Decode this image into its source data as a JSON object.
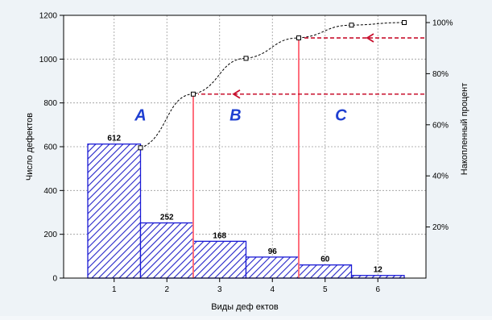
{
  "chart_data": {
    "type": "bar",
    "title": "",
    "xlabel": "Виды деф ектов",
    "ylabel": "Число дефектов",
    "y2label": "Накопленный процент",
    "categories": [
      "1",
      "2",
      "3",
      "4",
      "5",
      "6"
    ],
    "values": [
      612,
      252,
      168,
      96,
      60,
      12
    ],
    "value_labels": [
      "612",
      "252",
      "168",
      "96",
      "60",
      "12"
    ],
    "ylim": [
      0,
      1200
    ],
    "yticks": [
      "0",
      "200",
      "400",
      "600",
      "800",
      "1000",
      "1200"
    ],
    "y2lim": [
      0,
      100
    ],
    "y2ticks": [
      "20%",
      "40%",
      "60%",
      "80%",
      "100%"
    ],
    "cumulative_percent": [
      51,
      72,
      86,
      94,
      99,
      100
    ],
    "zones": [
      "A",
      "B",
      "C"
    ],
    "zone_boundaries_after_category": [
      2,
      4
    ],
    "grid": true,
    "colors": {
      "bar_edge": "#1a1ad6",
      "bar_hatch": "#2323c8",
      "cumulative_line": "#000000",
      "boundary_line": "#ff6f7d",
      "arrow": "#c8102e",
      "zone_text": "#1f3fd1"
    }
  }
}
